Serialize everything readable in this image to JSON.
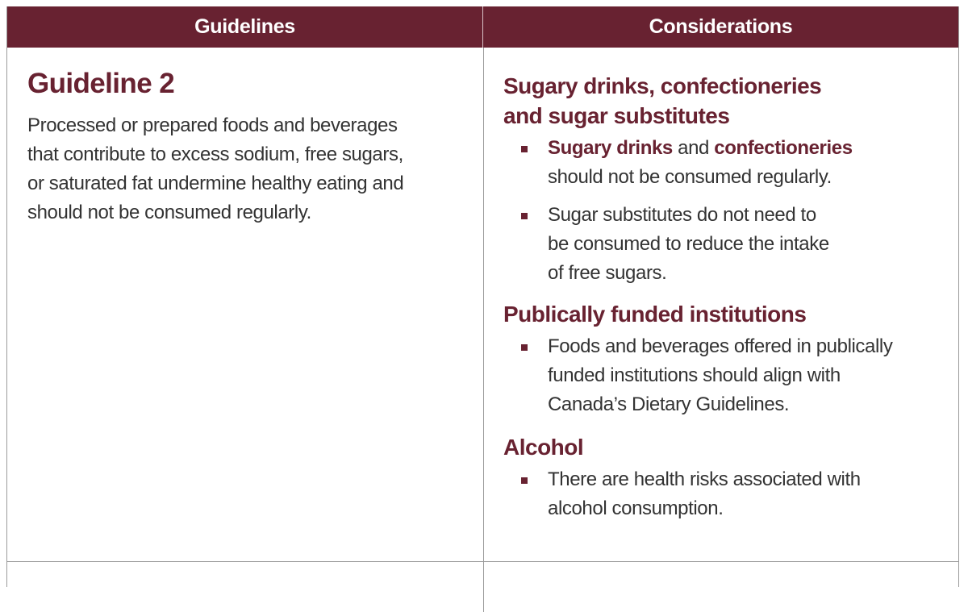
{
  "header": {
    "col1": "Guidelines",
    "col2": "Considerations"
  },
  "guideline": {
    "title": "Guideline 2",
    "lines": [
      "Processed or prepared foods and beverages",
      "that contribute to excess sodium, free sugars,",
      "or saturated fat undermine healthy eating and",
      "should not be consumed regularly."
    ]
  },
  "considerations": {
    "section1": {
      "heading_line1": "Sugary drinks, confectioneries",
      "heading_line2": "and sugar substitutes",
      "bullet1": {
        "bold1": "Sugary drinks",
        "mid": " and ",
        "bold2": "confectioneries",
        "rest": "should not be consumed regularly."
      },
      "bullet2": {
        "line1": "Sugar substitutes do not need to",
        "line2": "be consumed to reduce the intake",
        "line3": "of free sugars."
      }
    },
    "section2": {
      "heading": "Publically funded institutions",
      "bullet1": {
        "line1": "Foods and beverages offered in publically",
        "line2": "funded institutions should align with",
        "line3": "Canada’s Dietary Guidelines."
      }
    },
    "section3": {
      "heading": "Alcohol",
      "bullet1": {
        "line1": "There are health risks associated with",
        "line2": "alcohol consumption."
      }
    }
  },
  "colors": {
    "brand": "#682231",
    "text": "#333333",
    "rule": "#9a9a9a"
  }
}
